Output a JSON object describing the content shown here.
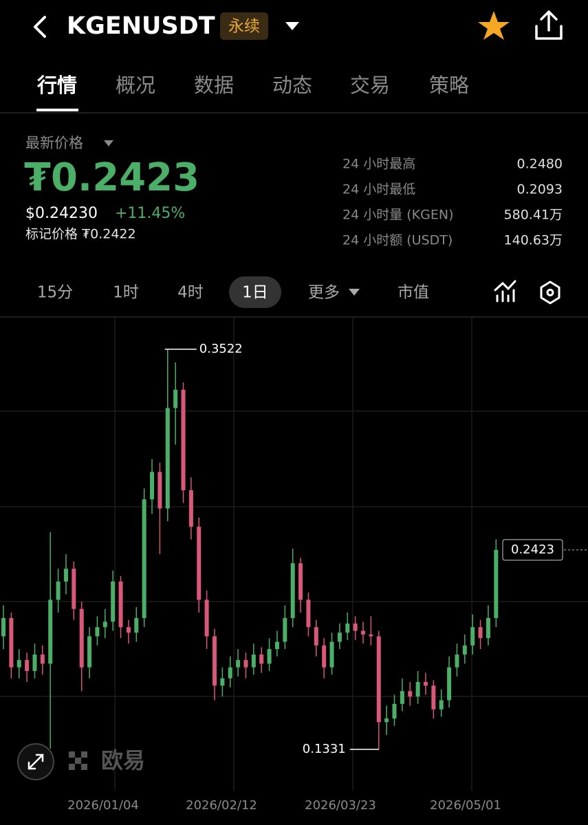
{
  "header": {
    "title": "KGENUSDT",
    "badge": "永续"
  },
  "tabs": {
    "items": [
      "行情",
      "概况",
      "数据",
      "动态",
      "交易",
      "策略"
    ],
    "active": 0
  },
  "price": {
    "label": "最新价格",
    "last": "₮0.2423",
    "usd": "$0.24230",
    "change": "+11.45%",
    "mark": "标记价格 ₮0.2422"
  },
  "stats": [
    [
      "24 小时最高",
      "0.2480"
    ],
    [
      "24 小时最低",
      "0.2093"
    ],
    [
      "24 小时量 (KGEN)",
      "580.41万"
    ],
    [
      "24 小时额 (USDT)",
      "140.63万"
    ]
  ],
  "intervals": {
    "items": [
      "15分",
      "1时",
      "4时",
      "1日",
      "更多",
      "市值"
    ],
    "active": 3
  },
  "watermark": "欧易",
  "chart_data": {
    "type": "candlestick",
    "up_color": "#4caf68",
    "down_color": "#d9587a",
    "ylim": [
      0.1105,
      0.3695
    ],
    "x_labels": [
      "2026/01/04",
      "2026/02/12",
      "2026/03/23",
      "2026/05/01"
    ],
    "candles": [
      [
        0.195,
        0.212,
        0.188,
        0.205
      ],
      [
        0.205,
        0.208,
        0.172,
        0.178
      ],
      [
        0.178,
        0.188,
        0.172,
        0.182
      ],
      [
        0.182,
        0.186,
        0.17,
        0.176
      ],
      [
        0.176,
        0.191,
        0.172,
        0.185
      ],
      [
        0.185,
        0.19,
        0.174,
        0.18
      ],
      [
        0.18,
        0.252,
        0.1335,
        0.215
      ],
      [
        0.215,
        0.232,
        0.208,
        0.225
      ],
      [
        0.225,
        0.24,
        0.218,
        0.232
      ],
      [
        0.232,
        0.236,
        0.204,
        0.21
      ],
      [
        0.21,
        0.214,
        0.165,
        0.178
      ],
      [
        0.178,
        0.2,
        0.172,
        0.195
      ],
      [
        0.195,
        0.206,
        0.19,
        0.2
      ],
      [
        0.2,
        0.21,
        0.194,
        0.203
      ],
      [
        0.203,
        0.231,
        0.198,
        0.225
      ],
      [
        0.225,
        0.228,
        0.194,
        0.2
      ],
      [
        0.2,
        0.204,
        0.191,
        0.197
      ],
      [
        0.197,
        0.211,
        0.192,
        0.205
      ],
      [
        0.205,
        0.276,
        0.2,
        0.27
      ],
      [
        0.27,
        0.292,
        0.262,
        0.285
      ],
      [
        0.285,
        0.29,
        0.24,
        0.265
      ],
      [
        0.265,
        0.3522,
        0.258,
        0.32
      ],
      [
        0.32,
        0.345,
        0.3,
        0.33
      ],
      [
        0.33,
        0.334,
        0.268,
        0.275
      ],
      [
        0.275,
        0.282,
        0.248,
        0.255
      ],
      [
        0.255,
        0.26,
        0.208,
        0.215
      ],
      [
        0.215,
        0.22,
        0.188,
        0.195
      ],
      [
        0.195,
        0.199,
        0.16,
        0.168
      ],
      [
        0.168,
        0.178,
        0.162,
        0.172
      ],
      [
        0.172,
        0.184,
        0.167,
        0.178
      ],
      [
        0.178,
        0.188,
        0.173,
        0.182
      ],
      [
        0.182,
        0.186,
        0.172,
        0.178
      ],
      [
        0.178,
        0.191,
        0.174,
        0.185
      ],
      [
        0.185,
        0.189,
        0.175,
        0.18
      ],
      [
        0.18,
        0.194,
        0.176,
        0.188
      ],
      [
        0.188,
        0.198,
        0.184,
        0.192
      ],
      [
        0.192,
        0.212,
        0.188,
        0.205
      ],
      [
        0.205,
        0.243,
        0.2,
        0.235
      ],
      [
        0.235,
        0.238,
        0.208,
        0.215
      ],
      [
        0.215,
        0.219,
        0.195,
        0.2
      ],
      [
        0.2,
        0.204,
        0.184,
        0.19
      ],
      [
        0.19,
        0.194,
        0.172,
        0.178
      ],
      [
        0.178,
        0.197,
        0.174,
        0.192
      ],
      [
        0.192,
        0.202,
        0.188,
        0.197
      ],
      [
        0.197,
        0.208,
        0.193,
        0.202
      ],
      [
        0.202,
        0.206,
        0.193,
        0.198
      ],
      [
        0.198,
        0.203,
        0.191,
        0.196
      ],
      [
        0.196,
        0.206,
        0.19,
        0.195
      ],
      [
        0.195,
        0.198,
        0.1331,
        0.148
      ],
      [
        0.148,
        0.157,
        0.141,
        0.15
      ],
      [
        0.15,
        0.163,
        0.146,
        0.158
      ],
      [
        0.158,
        0.172,
        0.154,
        0.165
      ],
      [
        0.165,
        0.17,
        0.157,
        0.162
      ],
      [
        0.162,
        0.176,
        0.158,
        0.17
      ],
      [
        0.17,
        0.175,
        0.163,
        0.168
      ],
      [
        0.168,
        0.171,
        0.15,
        0.155
      ],
      [
        0.155,
        0.166,
        0.151,
        0.16
      ],
      [
        0.16,
        0.184,
        0.156,
        0.178
      ],
      [
        0.178,
        0.191,
        0.173,
        0.185
      ],
      [
        0.185,
        0.196,
        0.18,
        0.19
      ],
      [
        0.19,
        0.207,
        0.185,
        0.2
      ],
      [
        0.2,
        0.204,
        0.188,
        0.194
      ],
      [
        0.194,
        0.212,
        0.19,
        0.205
      ],
      [
        0.205,
        0.248,
        0.2,
        0.2423
      ]
    ],
    "high_marker": [
      21,
      1
    ],
    "low_marker": [
      48,
      2
    ],
    "last_marker": [
      63,
      3
    ]
  }
}
